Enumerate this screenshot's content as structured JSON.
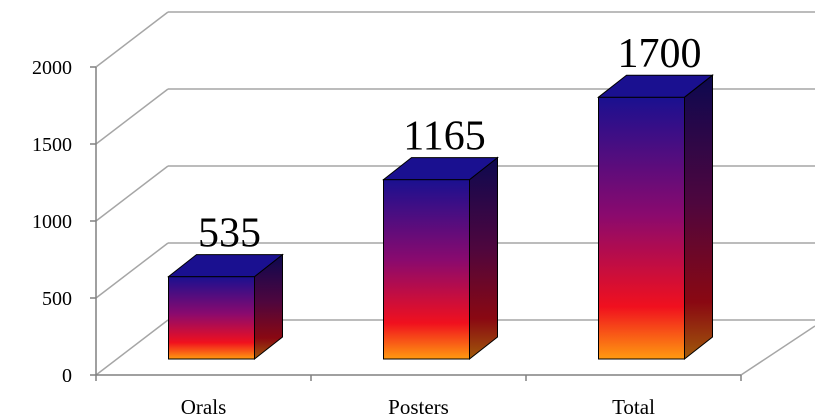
{
  "chart_data": {
    "type": "bar",
    "style": "3d-column",
    "categories": [
      "Orals",
      "Posters",
      "Total"
    ],
    "values": [
      535,
      1165,
      1700
    ],
    "data_labels": [
      "535",
      "1165",
      "1700"
    ],
    "yticks": [
      "0",
      "500",
      "1000",
      "1500",
      "2000"
    ],
    "ylim": [
      0,
      2000
    ],
    "grid": true,
    "legend": "none",
    "colors": {
      "bar_top": "#1a1090",
      "bar_mid": "#8a0a6e",
      "bar_low": "#f0101e",
      "bar_base": "#ff9a10",
      "grid": "#a6a6a6",
      "axis": "#808080"
    }
  }
}
